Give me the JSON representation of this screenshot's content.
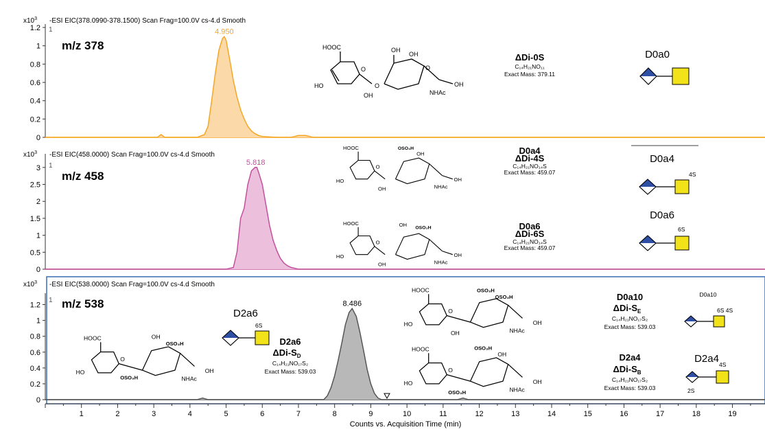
{
  "x_axis": {
    "label": "Counts vs. Acquisition Time (min)",
    "ticks": [
      1,
      2,
      3,
      4,
      5,
      6,
      7,
      8,
      9,
      10,
      11,
      12,
      13,
      14,
      15,
      16,
      17,
      18,
      19
    ],
    "range": [
      0,
      19.9
    ]
  },
  "chart_data": [
    {
      "type": "area",
      "header": "-ESI EIC(378.0990-378.1500) Scan Frag=100.0V cs-4.d  Smooth",
      "scale_label": "x10",
      "scale_exp": "3",
      "panel_index": "1",
      "ion_label": "m/z 378",
      "color": "#f5a623",
      "fill": "#fbd9a8",
      "ylim": [
        0,
        1.2
      ],
      "yticks": [
        "1.2",
        "1",
        "0.8",
        "0.6",
        "0.4",
        "0.2",
        "0"
      ],
      "peak_label": "4.950",
      "x": [
        0,
        3.1,
        3.2,
        3.3,
        4.2,
        4.4,
        4.5,
        4.6,
        4.7,
        4.8,
        4.9,
        4.95,
        5.0,
        5.1,
        5.2,
        5.3,
        5.4,
        5.5,
        5.6,
        5.7,
        5.8,
        5.9,
        6.0,
        6.4,
        6.8,
        7.0,
        7.2,
        7.4,
        19.9
      ],
      "y": [
        0,
        0,
        0.03,
        0,
        0,
        0.03,
        0.12,
        0.4,
        0.7,
        0.95,
        1.08,
        1.1,
        1.06,
        0.85,
        0.62,
        0.44,
        0.3,
        0.2,
        0.12,
        0.07,
        0.04,
        0.02,
        0.01,
        0,
        0,
        0.02,
        0.02,
        0,
        0
      ]
    },
    {
      "type": "area",
      "header": "-ESI EIC(458.0000) Scan Frag=100.0V cs-4.d  Smooth",
      "scale_label": "x10",
      "scale_exp": "3",
      "panel_index": "1",
      "ion_label": "m/z 458",
      "color": "#c2509e",
      "fill": "#ecbfdd",
      "ylim": [
        0,
        3.3
      ],
      "yticks": [
        "3",
        "2.5",
        "2",
        "1.5",
        "1",
        "0.5",
        "0"
      ],
      "peak_label": "5.818",
      "x": [
        0,
        5.0,
        5.2,
        5.3,
        5.4,
        5.5,
        5.6,
        5.7,
        5.8,
        5.85,
        5.9,
        6.0,
        6.1,
        6.2,
        6.3,
        6.4,
        6.5,
        6.6,
        6.7,
        6.8,
        7.0,
        19.9
      ],
      "y": [
        0,
        0,
        0.05,
        0.5,
        1.5,
        1.8,
        2.5,
        2.9,
        3.0,
        3.0,
        2.85,
        2.5,
        1.9,
        1.3,
        0.85,
        0.55,
        0.32,
        0.18,
        0.1,
        0.05,
        0,
        0
      ]
    },
    {
      "type": "area",
      "header": "-ESI EIC(538.0000) Scan Frag=100.0V cs-4.d  Smooth",
      "scale_label": "x10",
      "scale_exp": "3",
      "panel_index": "1",
      "ion_label": "m/z 538",
      "color": "#555555",
      "fill": "#b8b8b8",
      "ylim": [
        0,
        1.3
      ],
      "yticks": [
        "1.2",
        "1",
        "0.8",
        "0.6",
        "0.4",
        "0.2",
        "0"
      ],
      "peak_label": "8.486",
      "x": [
        0,
        4.2,
        4.35,
        4.5,
        7.7,
        7.8,
        7.9,
        8.0,
        8.1,
        8.2,
        8.3,
        8.4,
        8.486,
        8.6,
        8.7,
        8.8,
        8.9,
        9.0,
        9.1,
        9.2,
        9.3,
        11.4,
        11.55,
        11.7,
        19.9
      ],
      "y": [
        0,
        0,
        0.02,
        0,
        0,
        0.05,
        0.15,
        0.3,
        0.5,
        0.72,
        0.95,
        1.1,
        1.15,
        1.05,
        0.85,
        0.62,
        0.38,
        0.2,
        0.08,
        0.02,
        0,
        0,
        0.02,
        0,
        0
      ]
    }
  ],
  "annotations": {
    "p1": {
      "glycan_label": "D0a0",
      "name": "ΔDi-0S",
      "formula": "C₁₄H₂₁NO₁₁",
      "mass": "Exact Mass: 379.11"
    },
    "p2": {
      "glycan_label_a": "D0a4",
      "glycan_label_b": "D0a6",
      "sulfate_a": "4S",
      "sulfate_b": "6S",
      "code_a": "D0a4",
      "name_a": "ΔDi-4S",
      "formula_a": "C₁₄H₂₁NO₁₄S",
      "mass_a": "Exact Mass: 459.07",
      "code_b": "D0a6",
      "name_b": "ΔDi-6S",
      "formula_b": "C₁₄H₂₁NO₁₄S",
      "mass_b": "Exact Mass: 459.07"
    },
    "p3": {
      "glycan_left_label": "D2a6",
      "glycan_left_sulfate": "6S",
      "code_left": "D2a6",
      "name_left": "ΔDi-S",
      "name_left_sub": "D",
      "formula_left": "C₁₄H₂₁NO₁₇S₂",
      "mass_left": "Exact Mass: 539.03",
      "code_a": "D0a10",
      "name_a": "ΔDi-S",
      "name_a_sub": "E",
      "formula_a": "C₁₄H₂₁NO₁₇S₂",
      "mass_a": "Exact Mass: 539.03",
      "glycan_a_label": "D0a10",
      "glycan_a_sulfate": "6S 4S",
      "code_b": "D2a4",
      "name_b": "ΔDi-S",
      "name_b_sub": "B",
      "formula_b": "C₁₄H₂₁NO₁₇S₂",
      "mass_b": "Exact Mass: 539.03",
      "glycan_b_label": "D2a4",
      "glycan_b_sulfate": "4S",
      "glycan_b_sulfate2": "2S"
    },
    "chem": {
      "hooc": "HOOC",
      "ho": "HO",
      "oh": "OH",
      "o": "O",
      "nhac": "NHAc",
      "oso3h": "OSO₃H",
      "so3h": "SO₃H"
    }
  }
}
